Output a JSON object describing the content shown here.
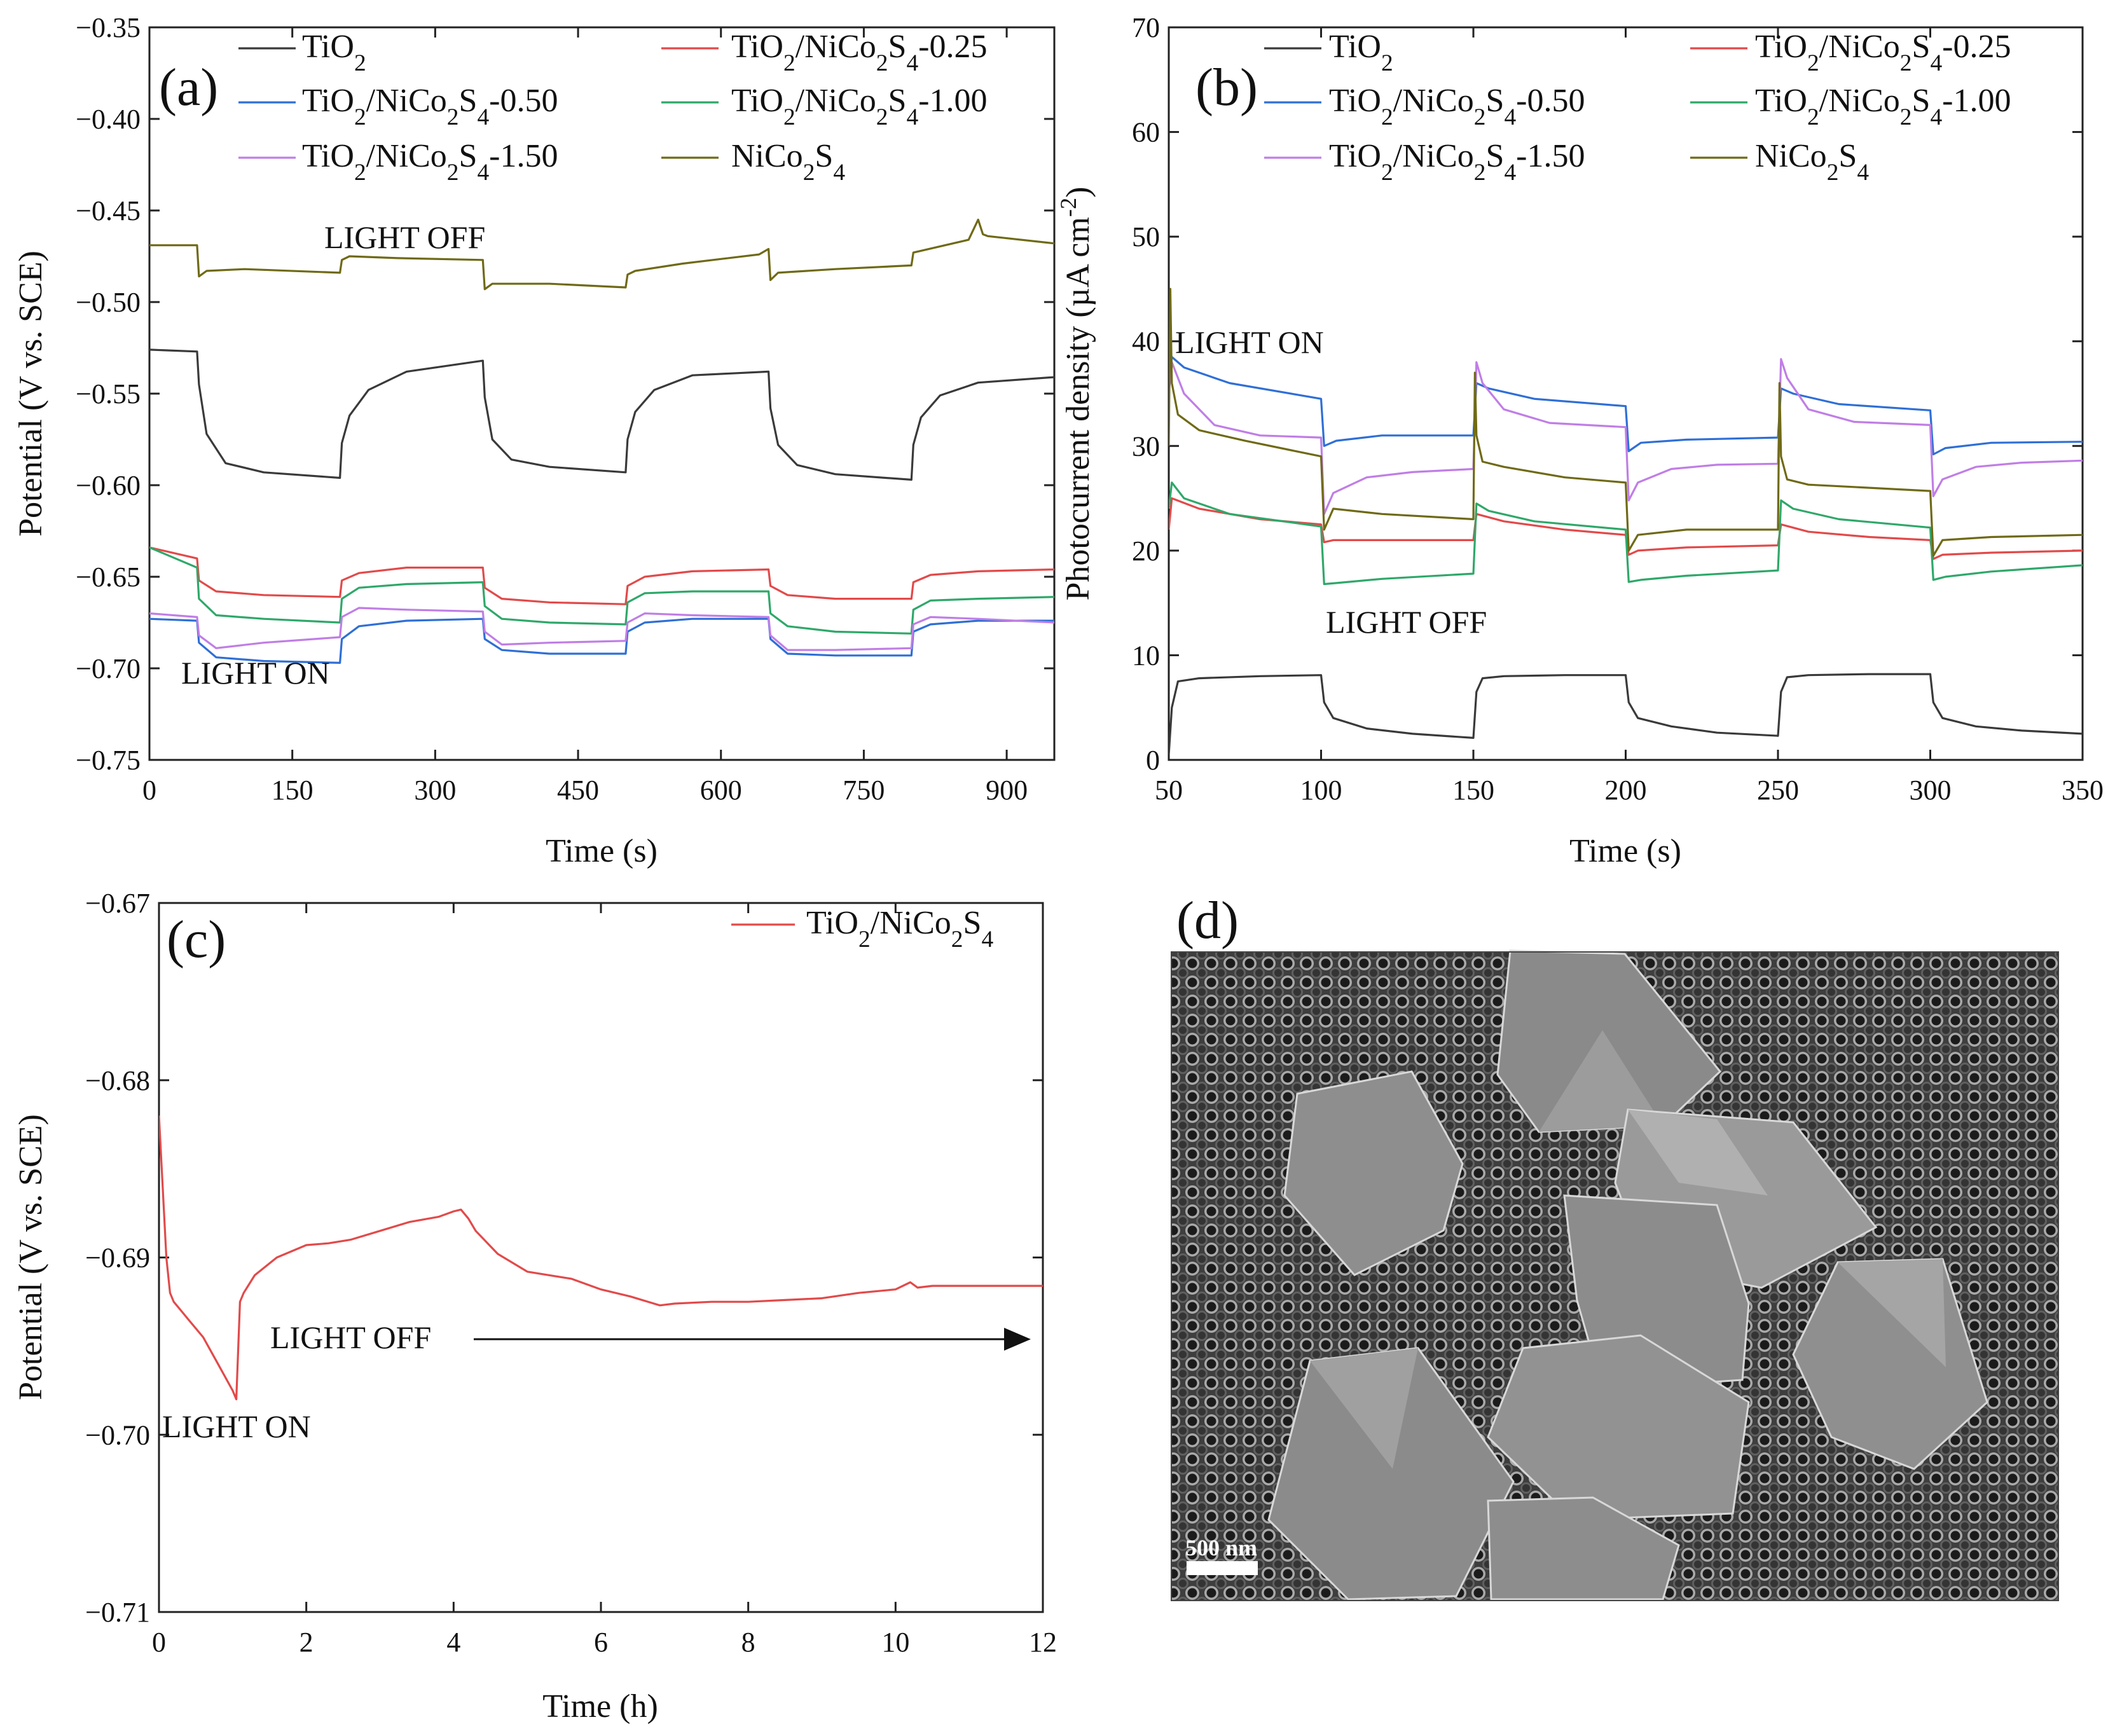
{
  "colors": {
    "TiO2": "#3a3a3a",
    "TiO2/NiCo2S4-0.25": "#e24a4a",
    "TiO2/NiCo2S4-0.50": "#2f6fd6",
    "TiO2/NiCo2S4-1.00": "#2fa86a",
    "TiO2/NiCo2S4-1.50": "#c07ee6",
    "NiCo2S4": "#6f6a16"
  },
  "chart_data": [
    {
      "panel": "(a)",
      "type": "line",
      "xlabel": "Time (s)",
      "ylabel": "Potential (V vs. SCE)",
      "xlim": [
        0,
        950
      ],
      "ylim": [
        -0.75,
        -0.35
      ],
      "xticks": [
        "0",
        "150",
        "300",
        "450",
        "600",
        "750",
        "900"
      ],
      "yticks": [
        "-0.75",
        "-0.70",
        "-0.65",
        "-0.60",
        "-0.55",
        "-0.50",
        "-0.45",
        "-0.40",
        "-0.35"
      ],
      "legend": [
        "TiO2",
        "TiO2/NiCo2S4-0.25",
        "TiO2/NiCo2S4-0.50",
        "TiO2/NiCo2S4-1.00",
        "TiO2/NiCo2S4-1.50",
        "NiCo2S4"
      ],
      "annotations": [
        "LIGHT OFF",
        "LIGHT ON"
      ],
      "series": [
        {
          "name": "TiO2",
          "x": [
            0,
            50,
            52,
            60,
            80,
            120,
            200,
            202,
            210,
            230,
            270,
            350,
            352,
            360,
            380,
            420,
            500,
            502,
            510,
            530,
            570,
            650,
            652,
            660,
            680,
            720,
            800,
            802,
            810,
            830,
            870,
            950
          ],
          "y": [
            -0.526,
            -0.527,
            -0.545,
            -0.572,
            -0.588,
            -0.593,
            -0.596,
            -0.577,
            -0.562,
            -0.548,
            -0.538,
            -0.532,
            -0.552,
            -0.575,
            -0.586,
            -0.59,
            -0.593,
            -0.575,
            -0.56,
            -0.548,
            -0.54,
            -0.538,
            -0.558,
            -0.578,
            -0.589,
            -0.594,
            -0.597,
            -0.578,
            -0.563,
            -0.551,
            -0.544,
            -0.541
          ]
        },
        {
          "name": "TiO2/NiCo2S4-0.25",
          "x": [
            0,
            50,
            52,
            70,
            120,
            200,
            202,
            220,
            270,
            350,
            352,
            370,
            420,
            500,
            502,
            520,
            570,
            650,
            652,
            670,
            720,
            800,
            802,
            820,
            870,
            950
          ],
          "y": [
            -0.634,
            -0.64,
            -0.652,
            -0.658,
            -0.66,
            -0.661,
            -0.652,
            -0.648,
            -0.645,
            -0.645,
            -0.656,
            -0.662,
            -0.664,
            -0.665,
            -0.655,
            -0.65,
            -0.647,
            -0.646,
            -0.655,
            -0.66,
            -0.662,
            -0.662,
            -0.653,
            -0.649,
            -0.647,
            -0.646
          ]
        },
        {
          "name": "TiO2/NiCo2S4-0.50",
          "x": [
            0,
            50,
            52,
            70,
            120,
            200,
            202,
            220,
            270,
            350,
            352,
            370,
            420,
            500,
            502,
            520,
            570,
            650,
            652,
            670,
            720,
            800,
            802,
            820,
            870,
            950
          ],
          "y": [
            -0.673,
            -0.674,
            -0.686,
            -0.694,
            -0.696,
            -0.697,
            -0.684,
            -0.677,
            -0.674,
            -0.673,
            -0.684,
            -0.69,
            -0.692,
            -0.692,
            -0.68,
            -0.675,
            -0.673,
            -0.673,
            -0.684,
            -0.692,
            -0.693,
            -0.693,
            -0.68,
            -0.676,
            -0.674,
            -0.674
          ]
        },
        {
          "name": "TiO2/NiCo2S4-1.00",
          "x": [
            0,
            50,
            52,
            70,
            120,
            200,
            202,
            220,
            270,
            350,
            352,
            370,
            420,
            500,
            502,
            520,
            570,
            650,
            652,
            670,
            720,
            800,
            802,
            820,
            870,
            950
          ],
          "y": [
            -0.634,
            -0.645,
            -0.662,
            -0.671,
            -0.673,
            -0.675,
            -0.662,
            -0.656,
            -0.654,
            -0.653,
            -0.666,
            -0.673,
            -0.675,
            -0.676,
            -0.664,
            -0.659,
            -0.658,
            -0.658,
            -0.67,
            -0.677,
            -0.68,
            -0.681,
            -0.668,
            -0.663,
            -0.662,
            -0.661
          ]
        },
        {
          "name": "TiO2/NiCo2S4-1.50",
          "x": [
            0,
            50,
            52,
            70,
            120,
            200,
            202,
            220,
            270,
            350,
            352,
            370,
            420,
            500,
            502,
            520,
            570,
            650,
            652,
            670,
            720,
            800,
            802,
            820,
            870,
            950
          ],
          "y": [
            -0.67,
            -0.672,
            -0.682,
            -0.689,
            -0.686,
            -0.683,
            -0.672,
            -0.667,
            -0.668,
            -0.669,
            -0.68,
            -0.687,
            -0.686,
            -0.685,
            -0.675,
            -0.67,
            -0.671,
            -0.672,
            -0.682,
            -0.69,
            -0.69,
            -0.689,
            -0.676,
            -0.672,
            -0.673,
            -0.675
          ]
        },
        {
          "name": "NiCo2S4",
          "x": [
            0,
            50,
            52,
            60,
            100,
            200,
            202,
            210,
            260,
            350,
            352,
            360,
            420,
            500,
            502,
            510,
            560,
            640,
            650,
            652,
            660,
            720,
            800,
            802,
            810,
            860,
            870,
            875,
            880,
            950
          ],
          "y": [
            -0.469,
            -0.469,
            -0.486,
            -0.483,
            -0.482,
            -0.484,
            -0.477,
            -0.475,
            -0.476,
            -0.477,
            -0.493,
            -0.49,
            -0.49,
            -0.492,
            -0.485,
            -0.483,
            -0.479,
            -0.474,
            -0.471,
            -0.488,
            -0.484,
            -0.482,
            -0.48,
            -0.473,
            -0.472,
            -0.466,
            -0.455,
            -0.463,
            -0.464,
            -0.468
          ]
        }
      ]
    },
    {
      "panel": "(b)",
      "type": "line",
      "xlabel": "Time (s)",
      "ylabel": "Photocurrent density (µA cm⁻²)",
      "xlim": [
        50,
        350
      ],
      "ylim": [
        0,
        70
      ],
      "xticks": [
        "50",
        "100",
        "150",
        "200",
        "250",
        "300",
        "350"
      ],
      "yticks": [
        "0",
        "10",
        "20",
        "30",
        "40",
        "50",
        "60",
        "70"
      ],
      "legend": [
        "TiO2",
        "TiO2/NiCo2S4-0.25",
        "TiO2/NiCo2S4-0.50",
        "TiO2/NiCo2S4-1.00",
        "TiO2/NiCo2S4-1.50",
        "NiCo2S4"
      ],
      "annotations": [
        "LIGHT ON",
        "LIGHT OFF"
      ],
      "series": [
        {
          "name": "TiO2",
          "x": [
            50,
            51,
            53,
            60,
            80,
            100,
            101,
            104,
            115,
            130,
            150,
            151,
            153,
            160,
            180,
            200,
            201,
            204,
            215,
            230,
            250,
            251,
            253,
            260,
            280,
            300,
            301,
            304,
            315,
            330,
            350
          ],
          "y": [
            0.5,
            5,
            7.5,
            7.8,
            8.0,
            8.1,
            5.5,
            4.0,
            3.0,
            2.5,
            2.1,
            6.5,
            7.8,
            8.0,
            8.1,
            8.1,
            5.5,
            4.0,
            3.2,
            2.6,
            2.3,
            6.5,
            7.9,
            8.1,
            8.2,
            8.2,
            5.5,
            4.0,
            3.2,
            2.8,
            2.5
          ]
        },
        {
          "name": "TiO2/NiCo2S4-0.25",
          "x": [
            50,
            51,
            60,
            80,
            100,
            101,
            104,
            120,
            150,
            151,
            160,
            180,
            200,
            201,
            204,
            220,
            250,
            251,
            260,
            280,
            300,
            301,
            304,
            320,
            350
          ],
          "y": [
            22,
            25,
            24,
            23,
            22.5,
            20.8,
            21,
            21,
            21,
            23.5,
            22.8,
            22,
            21.5,
            19.6,
            20,
            20.3,
            20.5,
            22.5,
            21.8,
            21.3,
            21,
            19.2,
            19.6,
            19.8,
            20
          ]
        },
        {
          "name": "TiO2/NiCo2S4-0.50",
          "x": [
            50,
            51,
            55,
            70,
            100,
            101,
            105,
            120,
            150,
            151,
            155,
            170,
            200,
            201,
            205,
            220,
            250,
            251,
            255,
            270,
            300,
            301,
            305,
            320,
            350
          ],
          "y": [
            36,
            38.5,
            37.5,
            36,
            34.5,
            30,
            30.5,
            31,
            31,
            36,
            35.5,
            34.5,
            33.8,
            29.5,
            30.3,
            30.6,
            30.8,
            35.5,
            35,
            34,
            33.4,
            29.2,
            29.8,
            30.3,
            30.4
          ]
        },
        {
          "name": "TiO2/NiCo2S4-1.00",
          "x": [
            50,
            51,
            55,
            70,
            100,
            101,
            105,
            120,
            150,
            151,
            155,
            170,
            200,
            201,
            205,
            220,
            250,
            251,
            255,
            270,
            300,
            301,
            305,
            320,
            350
          ],
          "y": [
            24,
            26.5,
            25,
            23.5,
            22.3,
            16.8,
            16.9,
            17.3,
            17.8,
            24.5,
            23.8,
            22.8,
            22,
            17,
            17.2,
            17.6,
            18.1,
            24.8,
            24,
            23,
            22.2,
            17.2,
            17.5,
            18,
            18.6
          ]
        },
        {
          "name": "TiO2/NiCo2S4-1.50",
          "x": [
            50,
            51,
            55,
            65,
            80,
            100,
            101,
            104,
            115,
            130,
            150,
            151,
            153,
            160,
            175,
            200,
            201,
            204,
            215,
            230,
            250,
            251,
            253,
            260,
            275,
            300,
            301,
            304,
            315,
            330,
            350
          ],
          "y": [
            35,
            38,
            35,
            32,
            31,
            30.8,
            23.5,
            25.5,
            27,
            27.5,
            27.8,
            38,
            36,
            33.5,
            32.2,
            31.8,
            24.8,
            26.5,
            27.8,
            28.2,
            28.3,
            38.3,
            36.5,
            33.5,
            32.3,
            32,
            25.2,
            26.8,
            28,
            28.4,
            28.6
          ]
        },
        {
          "name": "NiCo2S4",
          "x": [
            50,
            50.5,
            51,
            53,
            60,
            75,
            100,
            101,
            104,
            120,
            150,
            150.5,
            151,
            153,
            160,
            180,
            200,
            201,
            204,
            220,
            250,
            250.5,
            251,
            253,
            260,
            280,
            300,
            301,
            304,
            320,
            350
          ],
          "y": [
            30,
            45,
            36,
            33,
            31.5,
            30.5,
            29,
            22,
            24,
            23.5,
            23,
            37,
            31,
            28.5,
            28,
            27,
            26.5,
            20,
            21.5,
            22,
            22,
            36,
            29,
            26.8,
            26.3,
            26,
            25.7,
            19.5,
            21,
            21.3,
            21.5
          ]
        }
      ]
    },
    {
      "panel": "(c)",
      "type": "line",
      "xlabel": "Time (h)",
      "ylabel": "Potential (V vs. SCE)",
      "xlim": [
        0,
        12
      ],
      "ylim": [
        -0.71,
        -0.67
      ],
      "xticks": [
        "0",
        "2",
        "4",
        "6",
        "8",
        "10",
        "12"
      ],
      "yticks": [
        "-0.71",
        "-0.70",
        "-0.69",
        "-0.68",
        "-0.67"
      ],
      "legend": [
        "TiO2/NiCo2S4"
      ],
      "annotations": [
        "LIGHT OFF",
        "LIGHT ON"
      ],
      "series": [
        {
          "name": "TiO2/NiCo2S4",
          "x": [
            0,
            0.05,
            0.1,
            0.15,
            0.2,
            0.3,
            0.4,
            0.6,
            0.8,
            1.0,
            1.05,
            1.1,
            1.15,
            1.3,
            1.6,
            2.0,
            2.3,
            2.6,
            3.0,
            3.4,
            3.8,
            4.0,
            4.1,
            4.2,
            4.3,
            4.6,
            5.0,
            5.3,
            5.6,
            6.0,
            6.4,
            6.8,
            7.0,
            7.5,
            8.0,
            8.5,
            9.0,
            9.5,
            10.0,
            10.2,
            10.3,
            10.5,
            11.0,
            11.5,
            12.0
          ],
          "y": [
            -0.682,
            -0.686,
            -0.69,
            -0.692,
            -0.6925,
            -0.693,
            -0.6935,
            -0.6945,
            -0.696,
            -0.6975,
            -0.698,
            -0.6925,
            -0.692,
            -0.691,
            -0.69,
            -0.6893,
            -0.6892,
            -0.689,
            -0.6885,
            -0.688,
            -0.6877,
            -0.6874,
            -0.6873,
            -0.6878,
            -0.6885,
            -0.6898,
            -0.6908,
            -0.691,
            -0.6912,
            -0.6918,
            -0.6922,
            -0.6927,
            -0.6926,
            -0.6925,
            -0.6925,
            -0.6924,
            -0.6923,
            -0.692,
            -0.6918,
            -0.6914,
            -0.6917,
            -0.6916,
            -0.6916,
            -0.6916,
            -0.6916
          ]
        }
      ]
    }
  ],
  "panel_d": {
    "label": "(d)",
    "scalebar": "500 nm"
  }
}
